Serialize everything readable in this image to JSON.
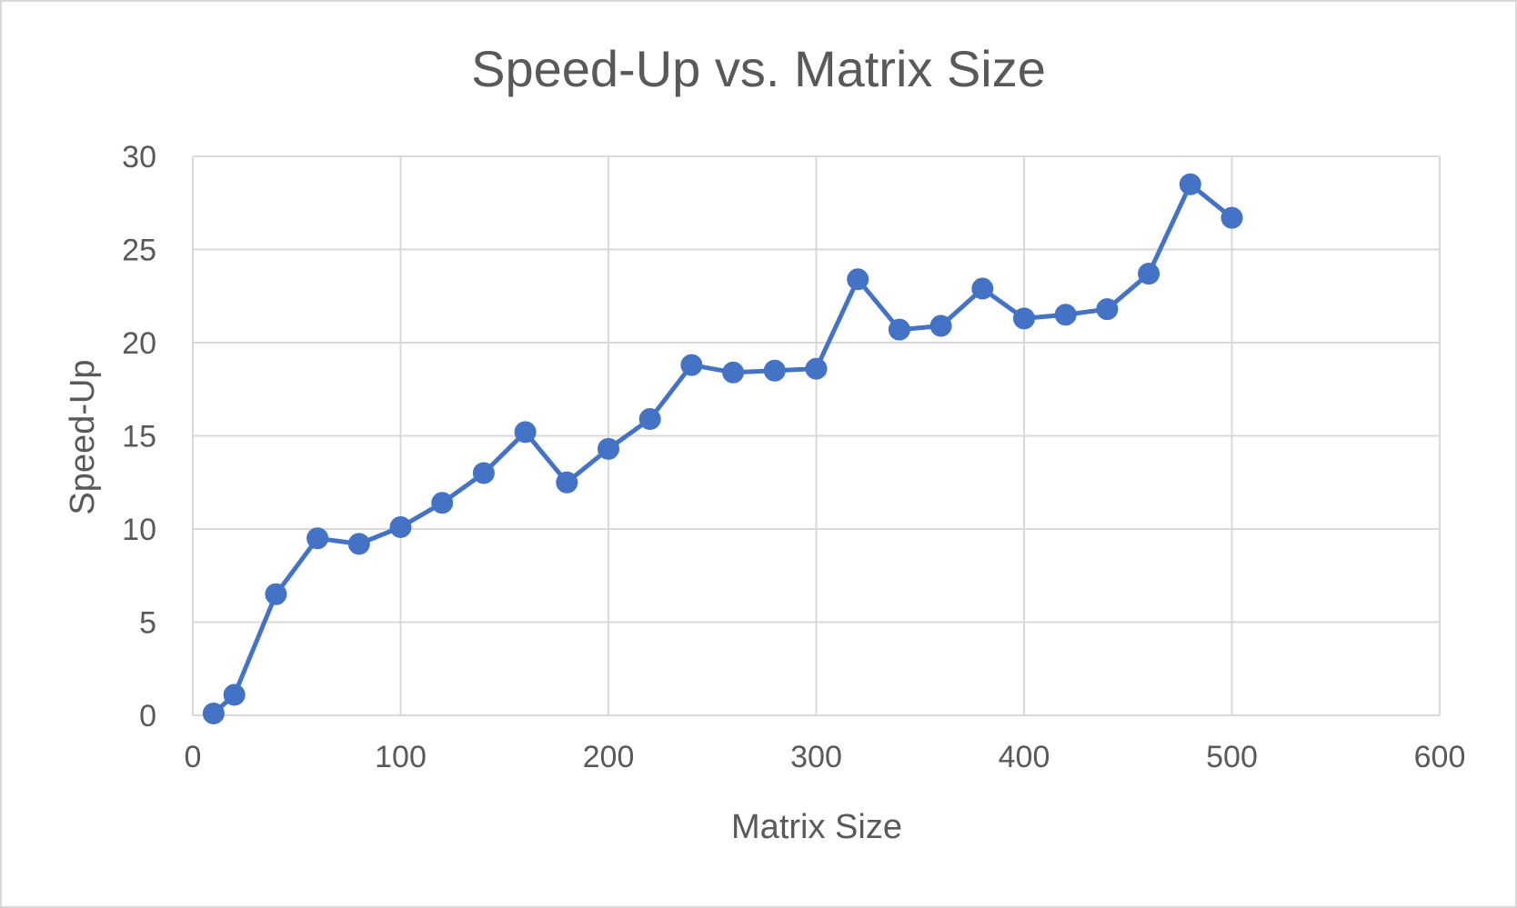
{
  "chart_data": {
    "type": "scatter",
    "title": "Speed-Up vs. Matrix Size",
    "xlabel": "Matrix Size",
    "ylabel": "Speed-Up",
    "xlim": [
      0,
      600
    ],
    "ylim": [
      0,
      30
    ],
    "x_ticks": [
      "0",
      "100",
      "200",
      "300",
      "400",
      "500",
      "600"
    ],
    "y_ticks": [
      "0",
      "5",
      "10",
      "15",
      "20",
      "25",
      "30"
    ],
    "grid": true,
    "legend": "none",
    "line_color": "#4472c4",
    "series": [
      {
        "x": [
          10,
          20,
          40,
          60,
          80,
          100,
          120,
          140,
          160,
          180,
          200,
          220,
          240,
          260,
          280,
          300,
          320,
          340,
          360,
          380,
          400,
          420,
          440,
          460,
          480,
          500
        ],
        "y": [
          0.1,
          1.1,
          6.5,
          9.5,
          9.2,
          10.1,
          11.4,
          13.0,
          15.2,
          12.5,
          14.3,
          15.9,
          18.8,
          18.4,
          18.5,
          18.6,
          23.4,
          20.7,
          20.9,
          22.9,
          21.3,
          21.5,
          21.8,
          23.7,
          28.5,
          26.7
        ]
      }
    ]
  }
}
